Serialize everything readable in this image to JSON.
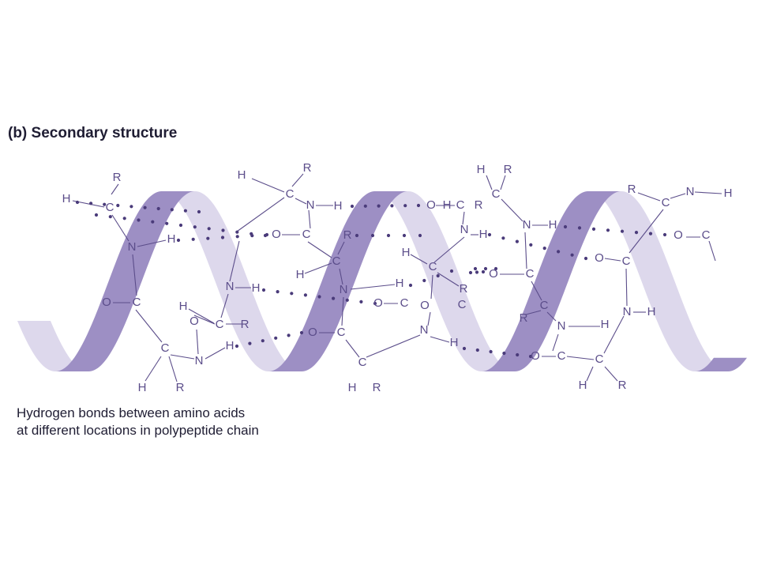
{
  "figure": {
    "label": "(b)",
    "title": "Secondary structure",
    "caption_lines": [
      "Hydrogen bonds between amino acids",
      "at different locations in polypeptide chain"
    ]
  },
  "colors": {
    "ribbon_front": "#9d8fc4",
    "ribbon_back": "#ddd8ec",
    "atom_text": "#5b4d8a",
    "bond_line": "#5b4d8a",
    "hbond_dots": "#4a3b7a",
    "title_text": "#1f1d33"
  },
  "atoms": [
    "H",
    "C",
    "R",
    "N",
    "H",
    "O",
    "C",
    "C",
    "H",
    "R",
    "O",
    "N",
    "H",
    "N",
    "H",
    "C",
    "H",
    "R",
    "H",
    "C",
    "R",
    "N",
    "H",
    "O",
    "C",
    "R",
    "C",
    "H",
    "N",
    "H",
    "C",
    "O",
    "O",
    "C",
    "C",
    "H",
    "R",
    "H",
    "R",
    "O",
    "C",
    "N",
    "H",
    "H",
    "C",
    "R",
    "O",
    "C",
    "N",
    "H",
    "H",
    "R",
    "C",
    "N",
    "H",
    "O",
    "C",
    "C",
    "R",
    "N",
    "H",
    "O",
    "C",
    "C",
    "H",
    "R",
    "R",
    "C",
    "N",
    "H",
    "O",
    "C",
    "O",
    "C",
    "N",
    "H"
  ]
}
